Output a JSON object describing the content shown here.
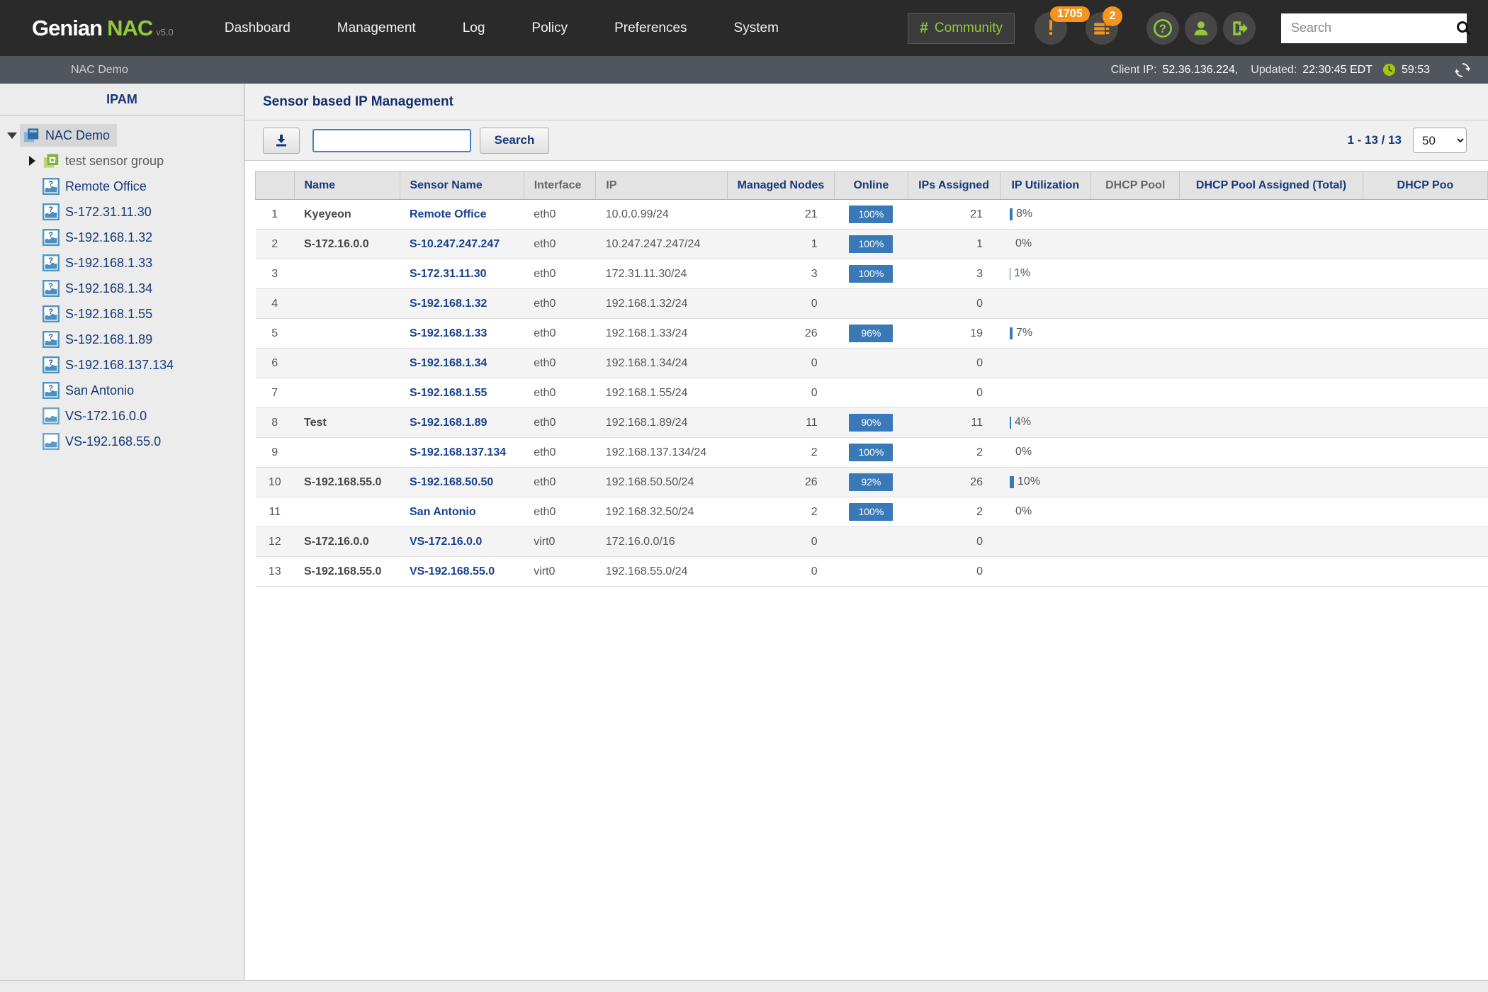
{
  "topnav": {
    "brand": {
      "name": "Genian",
      "product": "NAC",
      "version": "v5.0"
    },
    "menu": [
      "Dashboard",
      "Management",
      "Log",
      "Policy",
      "Preferences",
      "System"
    ],
    "community_label": "Community",
    "alerts": {
      "warning_count": "1705",
      "log_count": "2"
    },
    "icons": [
      "help-icon",
      "user-icon",
      "logout-icon"
    ],
    "search_placeholder": "Search",
    "colors": {
      "green": "#95c93d",
      "orange": "#f7941e"
    }
  },
  "subnav": {
    "site": "NAC Demo",
    "client_ip_label": "Client IP:",
    "client_ip": "52.36.136.224,",
    "updated_label": "Updated:",
    "updated_time": "22:30:45 EDT",
    "session_timer": "59:53"
  },
  "sidebar": {
    "title": "IPAM",
    "tree": [
      {
        "label": "NAC Demo",
        "icon": "folder",
        "expand": "down",
        "selected": true,
        "level": 0
      },
      {
        "label": "test sensor group",
        "icon": "group",
        "expand": "right",
        "muted": true,
        "level": 1
      },
      {
        "label": "Remote Office",
        "icon": "sensor",
        "level": 1
      },
      {
        "label": "S-172.31.11.30",
        "icon": "sensor",
        "level": 1
      },
      {
        "label": "S-192.168.1.32",
        "icon": "sensor",
        "level": 1
      },
      {
        "label": "S-192.168.1.33",
        "icon": "sensor",
        "level": 1
      },
      {
        "label": "S-192.168.1.34",
        "icon": "sensor",
        "level": 1
      },
      {
        "label": "S-192.168.1.55",
        "icon": "sensor",
        "level": 1
      },
      {
        "label": "S-192.168.1.89",
        "icon": "sensor",
        "level": 1
      },
      {
        "label": "S-192.168.137.134",
        "icon": "sensor",
        "level": 1
      },
      {
        "label": "San Antonio",
        "icon": "sensor",
        "level": 1
      },
      {
        "label": "VS-172.16.0.0",
        "icon": "vsensor",
        "level": 1
      },
      {
        "label": "VS-192.168.55.0",
        "icon": "vsensor",
        "level": 1
      }
    ]
  },
  "main": {
    "title": "Sensor based IP Management",
    "toolbar": {
      "filter_value": "",
      "search_button": "Search",
      "range": "1 - 13 / 13",
      "page_size": "50"
    },
    "table": {
      "columns": [
        {
          "label": "",
          "sortable": false
        },
        {
          "label": "Name",
          "sortable": true
        },
        {
          "label": "Sensor Name",
          "sortable": true
        },
        {
          "label": "Interface",
          "sortable": false
        },
        {
          "label": "IP",
          "sortable": false
        },
        {
          "label": "Managed Nodes",
          "sortable": true
        },
        {
          "label": "Online",
          "sortable": true
        },
        {
          "label": "IPs Assigned",
          "sortable": true
        },
        {
          "label": "IP Utilization",
          "sortable": true
        },
        {
          "label": "DHCP Pool",
          "sortable": false
        },
        {
          "label": "DHCP Pool Assigned (Total)",
          "sortable": true
        },
        {
          "label": "DHCP Poo",
          "sortable": true
        }
      ],
      "rows": [
        {
          "num": "1",
          "name": "Kyeyeon",
          "sensor": "Remote Office",
          "interface": "eth0",
          "ip": "10.0.0.99/24",
          "nodes": "21",
          "online": "100%",
          "assigned": "21",
          "util_label": "8%",
          "util_pct": 8
        },
        {
          "num": "2",
          "name": "S-172.16.0.0",
          "sensor": "S-10.247.247.247",
          "interface": "eth0",
          "ip": "10.247.247.247/24",
          "nodes": "1",
          "online": "100%",
          "assigned": "1",
          "util_label": "0%",
          "util_pct": 0
        },
        {
          "num": "3",
          "name": "",
          "sensor": "S-172.31.11.30",
          "interface": "eth0",
          "ip": "172.31.11.30/24",
          "nodes": "3",
          "online": "100%",
          "assigned": "3",
          "util_label": "1%",
          "util_pct": 1
        },
        {
          "num": "4",
          "name": "",
          "sensor": "S-192.168.1.32",
          "interface": "eth0",
          "ip": "192.168.1.32/24",
          "nodes": "0",
          "online": "",
          "assigned": "0",
          "util_label": "",
          "util_pct": 0
        },
        {
          "num": "5",
          "name": "",
          "sensor": "S-192.168.1.33",
          "interface": "eth0",
          "ip": "192.168.1.33/24",
          "nodes": "26",
          "online": "96%",
          "assigned": "19",
          "util_label": "7%",
          "util_pct": 7
        },
        {
          "num": "6",
          "name": "",
          "sensor": "S-192.168.1.34",
          "interface": "eth0",
          "ip": "192.168.1.34/24",
          "nodes": "0",
          "online": "",
          "assigned": "0",
          "util_label": "",
          "util_pct": 0
        },
        {
          "num": "7",
          "name": "",
          "sensor": "S-192.168.1.55",
          "interface": "eth0",
          "ip": "192.168.1.55/24",
          "nodes": "0",
          "online": "",
          "assigned": "0",
          "util_label": "",
          "util_pct": 0
        },
        {
          "num": "8",
          "name": "Test",
          "sensor": "S-192.168.1.89",
          "interface": "eth0",
          "ip": "192.168.1.89/24",
          "nodes": "11",
          "online": "90%",
          "assigned": "11",
          "util_label": "4%",
          "util_pct": 4
        },
        {
          "num": "9",
          "name": "",
          "sensor": "S-192.168.137.134",
          "interface": "eth0",
          "ip": "192.168.137.134/24",
          "nodes": "2",
          "online": "100%",
          "assigned": "2",
          "util_label": "0%",
          "util_pct": 0
        },
        {
          "num": "10",
          "name": "S-192.168.55.0",
          "sensor": "S-192.168.50.50",
          "interface": "eth0",
          "ip": "192.168.50.50/24",
          "nodes": "26",
          "online": "92%",
          "assigned": "26",
          "util_label": "10%",
          "util_pct": 10
        },
        {
          "num": "11",
          "name": "",
          "sensor": "San Antonio",
          "interface": "eth0",
          "ip": "192.168.32.50/24",
          "nodes": "2",
          "online": "100%",
          "assigned": "2",
          "util_label": "0%",
          "util_pct": 0
        },
        {
          "num": "12",
          "name": "S-172.16.0.0",
          "sensor": "VS-172.16.0.0",
          "interface": "virt0",
          "ip": "172.16.0.0/16",
          "nodes": "0",
          "online": "",
          "assigned": "0",
          "util_label": "",
          "util_pct": 0
        },
        {
          "num": "13",
          "name": "S-192.168.55.0",
          "sensor": "VS-192.168.55.0",
          "interface": "virt0",
          "ip": "192.168.55.0/24",
          "nodes": "0",
          "online": "",
          "assigned": "0",
          "util_label": "",
          "util_pct": 0
        }
      ]
    }
  }
}
